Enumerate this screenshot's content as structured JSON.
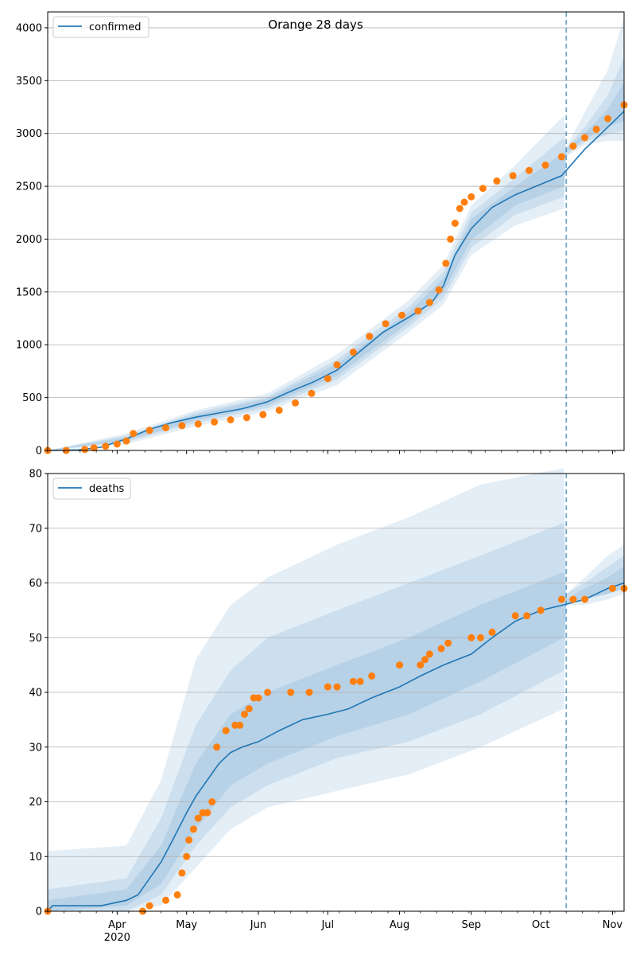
{
  "figure": {
    "title": "Orange 28 days",
    "year_label": "2020",
    "month_labels": [
      "Apr",
      "May",
      "Jun",
      "Jul",
      "Aug",
      "Sep",
      "Oct",
      "Nov"
    ]
  },
  "colors": {
    "model_line": "#1f77b4",
    "observed": "#ff7f0e",
    "band": "#1f77b4",
    "grid": "#b0b0b0",
    "forecast_marker": "#1f77b4"
  },
  "chart_data": [
    {
      "type": "line",
      "panel": "top",
      "legend": [
        "confirmed"
      ],
      "legend_position": "top-left",
      "x_range": [
        "2020-03-02",
        "2020-11-06"
      ],
      "ylim": [
        0,
        4150
      ],
      "y_ticks": [
        0,
        500,
        1000,
        1500,
        2000,
        2500,
        3000,
        3500,
        4000
      ],
      "grid": "horizontal",
      "forecast_start": "2020-10-12",
      "model_median": {
        "x": [
          "2020-03-02",
          "2020-03-15",
          "2020-03-25",
          "2020-04-05",
          "2020-04-15",
          "2020-04-25",
          "2020-05-05",
          "2020-05-15",
          "2020-05-25",
          "2020-06-05",
          "2020-06-15",
          "2020-06-25",
          "2020-07-05",
          "2020-07-15",
          "2020-07-25",
          "2020-08-05",
          "2020-08-15",
          "2020-08-20",
          "2020-08-25",
          "2020-09-01",
          "2020-09-10",
          "2020-09-20",
          "2020-09-30",
          "2020-10-10",
          "2020-10-20",
          "2020-10-30",
          "2020-11-06"
        ],
        "y": [
          0,
          5,
          30,
          110,
          200,
          265,
          315,
          355,
          395,
          460,
          560,
          650,
          760,
          940,
          1120,
          1260,
          1400,
          1560,
          1850,
          2100,
          2300,
          2420,
          2510,
          2600,
          2850,
          3060,
          3210
        ]
      },
      "bands": [
        {
          "level": "outer",
          "x": [
            "2020-03-02",
            "2020-04-05",
            "2020-05-05",
            "2020-06-05",
            "2020-07-05",
            "2020-08-05",
            "2020-08-20",
            "2020-09-01",
            "2020-09-20",
            "2020-10-11",
            "2020-10-12",
            "2020-10-20",
            "2020-10-30",
            "2020-11-06"
          ],
          "lower": [
            0,
            60,
            230,
            370,
            620,
            1120,
            1380,
            1850,
            2130,
            2290,
            2780,
            2890,
            2930,
            2930
          ],
          "upper": [
            0,
            160,
            380,
            540,
            910,
            1420,
            1760,
            2320,
            2700,
            3170,
            2870,
            3200,
            3600,
            4100
          ]
        },
        {
          "level": "middle",
          "x": [
            "2020-03-02",
            "2020-04-05",
            "2020-05-05",
            "2020-06-05",
            "2020-07-05",
            "2020-08-05",
            "2020-08-20",
            "2020-09-01",
            "2020-09-20",
            "2020-10-11",
            "2020-10-12",
            "2020-10-20",
            "2020-10-30",
            "2020-11-06"
          ],
          "lower": [
            0,
            80,
            260,
            400,
            670,
            1170,
            1440,
            1920,
            2230,
            2400,
            2800,
            2920,
            2990,
            3030
          ],
          "upper": [
            0,
            140,
            360,
            510,
            860,
            1360,
            1690,
            2250,
            2580,
            2960,
            2860,
            3060,
            3360,
            3720
          ]
        },
        {
          "level": "inner",
          "x": [
            "2020-03-02",
            "2020-04-05",
            "2020-05-05",
            "2020-06-05",
            "2020-07-05",
            "2020-08-05",
            "2020-08-20",
            "2020-09-01",
            "2020-09-20",
            "2020-10-11",
            "2020-10-12",
            "2020-10-20",
            "2020-10-30",
            "2020-11-06"
          ],
          "lower": [
            0,
            95,
            285,
            425,
            710,
            1210,
            1500,
            1990,
            2320,
            2500,
            2820,
            2950,
            3060,
            3120
          ],
          "upper": [
            0,
            125,
            340,
            490,
            820,
            1310,
            1630,
            2190,
            2500,
            2820,
            2850,
            3000,
            3230,
            3480
          ]
        }
      ],
      "observed": {
        "x": [
          "2020-03-02",
          "2020-03-10",
          "2020-03-18",
          "2020-03-22",
          "2020-03-27",
          "2020-04-01",
          "2020-04-05",
          "2020-04-08",
          "2020-04-15",
          "2020-04-22",
          "2020-04-29",
          "2020-05-06",
          "2020-05-13",
          "2020-05-20",
          "2020-05-27",
          "2020-06-03",
          "2020-06-10",
          "2020-06-17",
          "2020-06-24",
          "2020-07-01",
          "2020-07-05",
          "2020-07-12",
          "2020-07-19",
          "2020-07-26",
          "2020-08-02",
          "2020-08-09",
          "2020-08-14",
          "2020-08-18",
          "2020-08-21",
          "2020-08-23",
          "2020-08-25",
          "2020-08-27",
          "2020-08-29",
          "2020-09-01",
          "2020-09-06",
          "2020-09-12",
          "2020-09-19",
          "2020-09-26",
          "2020-10-03",
          "2020-10-10",
          "2020-10-15",
          "2020-10-20",
          "2020-10-25",
          "2020-10-30",
          "2020-11-06"
        ],
        "y": [
          0,
          0,
          10,
          25,
          40,
          60,
          90,
          160,
          190,
          215,
          235,
          250,
          270,
          290,
          310,
          340,
          380,
          450,
          540,
          680,
          810,
          930,
          1080,
          1200,
          1280,
          1320,
          1400,
          1520,
          1770,
          2000,
          2150,
          2290,
          2350,
          2400,
          2480,
          2550,
          2600,
          2650,
          2700,
          2780,
          2880,
          2960,
          3040,
          3140,
          3270
        ]
      }
    },
    {
      "type": "line",
      "panel": "bottom",
      "legend": [
        "deaths"
      ],
      "legend_position": "top-left",
      "x_range": [
        "2020-03-02",
        "2020-11-06"
      ],
      "ylim": [
        0,
        80
      ],
      "y_ticks": [
        0,
        10,
        20,
        30,
        40,
        50,
        60,
        70,
        80
      ],
      "grid": "horizontal",
      "forecast_start": "2020-10-12",
      "model_median": {
        "x": [
          "2020-03-02",
          "2020-03-04",
          "2020-03-20",
          "2020-03-25",
          "2020-04-05",
          "2020-04-10",
          "2020-04-15",
          "2020-04-20",
          "2020-04-25",
          "2020-05-01",
          "2020-05-05",
          "2020-05-10",
          "2020-05-15",
          "2020-05-20",
          "2020-05-25",
          "2020-06-01",
          "2020-06-10",
          "2020-06-20",
          "2020-07-01",
          "2020-07-10",
          "2020-07-20",
          "2020-08-01",
          "2020-08-10",
          "2020-08-20",
          "2020-09-01",
          "2020-09-10",
          "2020-09-20",
          "2020-10-01",
          "2020-10-11",
          "2020-10-20",
          "2020-10-30",
          "2020-11-06"
        ],
        "y": [
          0,
          1,
          1,
          1,
          2,
          3,
          6,
          9,
          13,
          18,
          21,
          24,
          27,
          29,
          30,
          31,
          33,
          35,
          36,
          37,
          39,
          41,
          43,
          45,
          47,
          50,
          53,
          55,
          56,
          57,
          59,
          60
        ]
      },
      "bands": [
        {
          "level": "outer",
          "x": [
            "2020-03-02",
            "2020-04-05",
            "2020-04-20",
            "2020-05-05",
            "2020-05-20",
            "2020-06-05",
            "2020-07-05",
            "2020-08-05",
            "2020-09-05",
            "2020-10-11",
            "2020-10-12",
            "2020-10-20",
            "2020-10-30",
            "2020-11-06"
          ],
          "lower": [
            0,
            0,
            1,
            8,
            15,
            19,
            22,
            25,
            30,
            37,
            56,
            56,
            57,
            58
          ],
          "upper": [
            11,
            12,
            24,
            46,
            56,
            61,
            67,
            72,
            78,
            81,
            58,
            61,
            65,
            67
          ]
        },
        {
          "level": "middle",
          "x": [
            "2020-03-02",
            "2020-04-05",
            "2020-04-20",
            "2020-05-05",
            "2020-05-20",
            "2020-06-05",
            "2020-07-05",
            "2020-08-05",
            "2020-09-05",
            "2020-10-11",
            "2020-10-12",
            "2020-10-20",
            "2020-10-30",
            "2020-11-06"
          ],
          "lower": [
            0,
            0,
            3,
            12,
            19,
            23,
            28,
            31,
            36,
            44,
            56,
            57,
            58,
            59
          ],
          "upper": [
            4,
            6,
            17,
            34,
            44,
            50,
            55,
            60,
            65,
            71,
            58,
            60,
            63,
            65
          ]
        },
        {
          "level": "inner",
          "x": [
            "2020-03-02",
            "2020-04-05",
            "2020-04-20",
            "2020-05-05",
            "2020-05-20",
            "2020-06-05",
            "2020-07-05",
            "2020-08-05",
            "2020-09-05",
            "2020-10-11",
            "2020-10-12",
            "2020-10-20",
            "2020-10-30",
            "2020-11-06"
          ],
          "lower": [
            0,
            1,
            5,
            15,
            23,
            27,
            32,
            36,
            42,
            50,
            56,
            57,
            58,
            59
          ],
          "upper": [
            2,
            4,
            12,
            27,
            36,
            40,
            45,
            50,
            56,
            62,
            57,
            59,
            61,
            63
          ]
        }
      ],
      "observed": {
        "x": [
          "2020-03-02",
          "2020-04-12",
          "2020-04-15",
          "2020-04-22",
          "2020-04-27",
          "2020-04-29",
          "2020-05-01",
          "2020-05-02",
          "2020-05-04",
          "2020-05-06",
          "2020-05-08",
          "2020-05-10",
          "2020-05-12",
          "2020-05-14",
          "2020-05-18",
          "2020-05-22",
          "2020-05-24",
          "2020-05-26",
          "2020-05-28",
          "2020-05-30",
          "2020-06-01",
          "2020-06-05",
          "2020-06-15",
          "2020-06-23",
          "2020-07-01",
          "2020-07-05",
          "2020-07-12",
          "2020-07-15",
          "2020-07-20",
          "2020-08-01",
          "2020-08-10",
          "2020-08-12",
          "2020-08-14",
          "2020-08-19",
          "2020-08-22",
          "2020-09-01",
          "2020-09-05",
          "2020-09-10",
          "2020-09-20",
          "2020-09-25",
          "2020-10-01",
          "2020-10-10",
          "2020-10-15",
          "2020-10-20",
          "2020-11-01",
          "2020-11-06"
        ],
        "y": [
          0,
          0,
          1,
          2,
          3,
          7,
          10,
          13,
          15,
          17,
          18,
          18,
          20,
          30,
          33,
          34,
          34,
          36,
          37,
          39,
          39,
          40,
          40,
          40,
          41,
          41,
          42,
          42,
          43,
          45,
          45,
          46,
          47,
          48,
          49,
          50,
          50,
          51,
          54,
          54,
          55,
          57,
          57,
          57,
          59,
          59
        ]
      }
    }
  ]
}
